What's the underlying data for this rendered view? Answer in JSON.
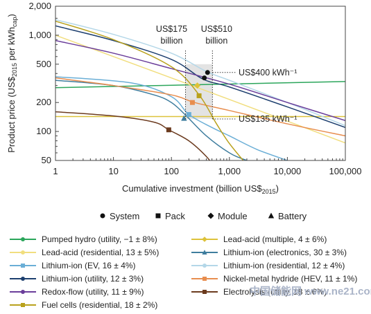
{
  "chart_data": {
    "type": "line",
    "xlabel_main": "Cumulative investment (billion US$",
    "xlabel_sub": "2015",
    "xlabel_end": ")",
    "ylabel_main": "Product price (US$",
    "ylabel_sub": "2015",
    "ylabel_mid": " per kWh",
    "ylabel_sub2": "cap",
    "ylabel_end": ")",
    "x_scale": "log",
    "y_scale": "log",
    "xlim": [
      1,
      100000
    ],
    "ylim": [
      50,
      2000
    ],
    "x_ticks": [
      {
        "value": 1,
        "label": "1"
      },
      {
        "value": 10,
        "label": "10"
      },
      {
        "value": 100,
        "label": "100"
      },
      {
        "value": 1000,
        "label": "1,000"
      },
      {
        "value": 10000,
        "label": "10,000"
      },
      {
        "value": 100000,
        "label": "100,000"
      }
    ],
    "y_ticks": [
      {
        "value": 50,
        "label": "50"
      },
      {
        "value": 100,
        "label": "100"
      },
      {
        "value": 200,
        "label": "200"
      },
      {
        "value": 500,
        "label": "500"
      },
      {
        "value": 1000,
        "label": "1,000"
      },
      {
        "value": 2000,
        "label": "2,000"
      }
    ],
    "annotations": {
      "inv_low": {
        "line1": "US$175",
        "line2": "billion"
      },
      "inv_high": {
        "line1": "US$510",
        "line2": "billion"
      },
      "price_high": "US$400 kWh⁻¹",
      "price_low": "US$135 kWh⁻¹"
    },
    "shaded_band": {
      "x": [
        175,
        510
      ]
    },
    "marker_types": [
      {
        "shape": "circle",
        "label": "System"
      },
      {
        "shape": "square",
        "label": "Pack"
      },
      {
        "shape": "diamond",
        "label": "Module"
      },
      {
        "shape": "triangle",
        "label": "Battery"
      }
    ],
    "series": [
      {
        "name": "Pumped hydro (utility, −1 ± 8%)",
        "color": "#2aa55a",
        "marker": "circle",
        "x": [
          1,
          100000
        ],
        "y": [
          285,
          330
        ]
      },
      {
        "name": "Lead-acid (multiple, 4 ± 6%)",
        "color": "#ddc23a",
        "marker": "diamond",
        "x": [
          1,
          1000,
          100000
        ],
        "y": [
          143,
          143,
          143
        ]
      },
      {
        "name": "Lead-acid (residential, 13 ± 5%)",
        "color": "#f1de7e",
        "marker": "circle",
        "x": [
          1,
          10,
          100,
          1000,
          10000,
          100000
        ],
        "y": [
          1000,
          600,
          360,
          215,
          128,
          76
        ]
      },
      {
        "name": "Lithium-ion (electronics, 30 ± 3%)",
        "color": "#3e7d9e",
        "marker": "triangle",
        "x": [
          1,
          10,
          50,
          100,
          175,
          400,
          1000,
          2000,
          5000
        ],
        "y": [
          340,
          300,
          240,
          200,
          148,
          90,
          60,
          50,
          42
        ]
      },
      {
        "name": "Lithium-ion (EV, 16 ± 4%)",
        "color": "#6aaed6",
        "marker": "square",
        "x": [
          1,
          20,
          100,
          200,
          500,
          1000,
          3000,
          10000
        ],
        "y": [
          370,
          320,
          230,
          150,
          110,
          90,
          65,
          50
        ]
      },
      {
        "name": "Lithium-ion (residential, 12 ± 4%)",
        "color": "#b4d7e8",
        "marker": "circle",
        "x": [
          1,
          10,
          100,
          400,
          1000,
          10000,
          100000
        ],
        "y": [
          1450,
          1020,
          650,
          420,
          340,
          200,
          115
        ]
      },
      {
        "name": "Lithium-ion (utility, 12 ± 3%)",
        "color": "#1c3e6e",
        "marker": "circle",
        "x": [
          1,
          10,
          100,
          350,
          1000,
          10000,
          100000
        ],
        "y": [
          1250,
          880,
          560,
          350,
          290,
          180,
          110
        ]
      },
      {
        "name": "Nickel-metal hydride (HEV, 11 ± 1%)",
        "color": "#e88d4e",
        "marker": "square",
        "x": [
          1,
          10,
          100,
          250,
          1000,
          10000,
          100000
        ],
        "y": [
          360,
          300,
          240,
          200,
          165,
          120,
          90
        ]
      },
      {
        "name": "Redox-flow (utility, 11 ± 9%)",
        "color": "#6a3d9a",
        "marker": "circle",
        "x": [
          1,
          10,
          100,
          1000,
          10000,
          100000
        ],
        "y": [
          880,
          650,
          450,
          310,
          200,
          130
        ]
      },
      {
        "name": "Electrolysis (utility, 18 ± 6%)",
        "color": "#6b3a1e",
        "marker": "square",
        "x": [
          1,
          10,
          50,
          90,
          200,
          400,
          600
        ],
        "y": [
          160,
          145,
          125,
          104,
          80,
          55,
          40
        ]
      },
      {
        "name": "Fuel cells (residential, 18 ± 2%)",
        "color": "#b9a11c",
        "marker": "square",
        "x": [
          1,
          10,
          100,
          300,
          600,
          1000,
          2000
        ],
        "y": [
          1400,
          900,
          470,
          240,
          120,
          75,
          45
        ]
      }
    ],
    "markers": [
      {
        "series": 6,
        "shape": "circle",
        "x": 370,
        "y": 360
      },
      {
        "series": 5,
        "shape": "circle",
        "x": 420,
        "y": 410
      },
      {
        "series": 10,
        "shape": "square",
        "x": 300,
        "y": 235
      },
      {
        "series": 1,
        "shape": "diamond",
        "x": 280,
        "y": 300
      },
      {
        "series": 7,
        "shape": "square",
        "x": 230,
        "y": 200
      },
      {
        "series": 4,
        "shape": "square",
        "x": 200,
        "y": 150
      },
      {
        "series": 3,
        "shape": "triangle",
        "x": 165,
        "y": 137
      },
      {
        "series": 9,
        "shape": "square",
        "x": 90,
        "y": 104
      }
    ]
  },
  "watermark": "中国储能网 www.ne21.com"
}
